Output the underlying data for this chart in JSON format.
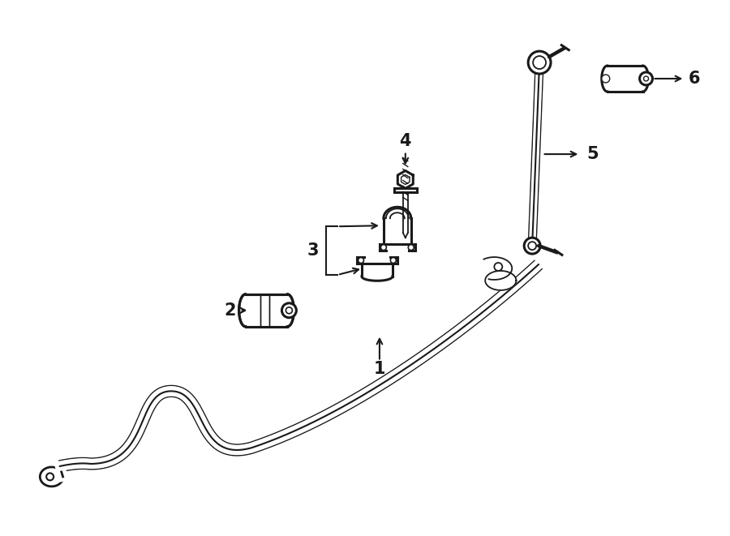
{
  "title": "",
  "background_color": "#ffffff",
  "line_color": "#1a1a1a",
  "figsize": [
    9.0,
    6.61
  ],
  "dpi": 100
}
